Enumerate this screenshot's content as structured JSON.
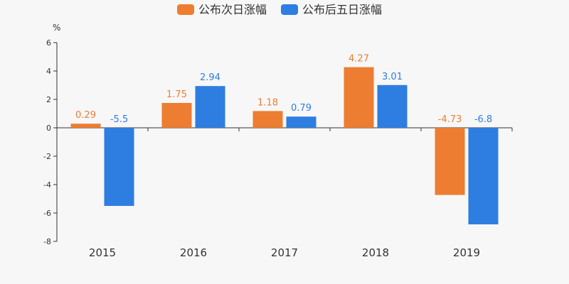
{
  "chart_data": {
    "type": "bar",
    "unit": "%",
    "categories": [
      "2015",
      "2016",
      "2017",
      "2018",
      "2019"
    ],
    "series": [
      {
        "name": "公布次日涨幅",
        "color": "#ed7d31",
        "values": [
          0.29,
          1.75,
          1.18,
          4.27,
          -4.73
        ],
        "labels": [
          "0.29",
          "1.75",
          "1.18",
          "4.27",
          "-4.73"
        ]
      },
      {
        "name": "公布后五日涨幅",
        "color": "#2e7de1",
        "values": [
          -5.5,
          2.94,
          0.79,
          3.01,
          -6.8
        ],
        "labels": [
          "-5.5",
          "2.94",
          "0.79",
          "3.01",
          "-6.8"
        ]
      }
    ],
    "ylim": [
      -8,
      6
    ],
    "yticks": [
      6,
      4,
      2,
      0,
      -2,
      -4,
      -6,
      -8
    ],
    "grid": false,
    "legend_position": "top-center"
  }
}
